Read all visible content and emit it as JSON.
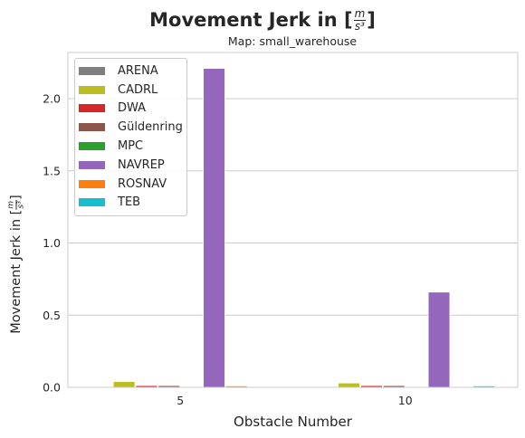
{
  "chart_data": {
    "type": "bar",
    "title": "Movement Jerk in [m/s³]",
    "title_text": "Movement Jerk in [",
    "title_suffix": "]",
    "unit_num": "m",
    "unit_den": "s³",
    "subtitle": "Map: small_warehouse",
    "xlabel": "Obstacle Number",
    "ylabel_text": "Movement Jerk in [",
    "ylabel_suffix": "]",
    "categories": [
      "5",
      "10"
    ],
    "ylim": [
      0,
      2.32
    ],
    "yticks": [
      0.0,
      0.5,
      1.0,
      1.5,
      2.0
    ],
    "ytick_labels": [
      "0.0",
      "0.5",
      "1.0",
      "1.5",
      "2.0"
    ],
    "grid": true,
    "legend_position": "top-left",
    "series": [
      {
        "name": "ARENA",
        "color": "#7f7f7f",
        "values": [
          0,
          0
        ]
      },
      {
        "name": "CADRL",
        "color": "#bcbd22",
        "values": [
          0.04,
          0.03
        ]
      },
      {
        "name": "DWA",
        "color": "#d62728",
        "values": [
          0.012,
          0.012
        ]
      },
      {
        "name": "Güldenring",
        "color": "#8c564b",
        "values": [
          0.012,
          0.012
        ]
      },
      {
        "name": "MPC",
        "color": "#2ca02c",
        "values": [
          0,
          0
        ]
      },
      {
        "name": "NAVREP",
        "color": "#9467bd",
        "values": [
          2.21,
          0.66
        ]
      },
      {
        "name": "ROSNAV",
        "color": "#ff7f0e",
        "values": [
          0.01,
          0
        ]
      },
      {
        "name": "TEB",
        "color": "#17becf",
        "values": [
          0,
          0.01
        ]
      }
    ]
  }
}
